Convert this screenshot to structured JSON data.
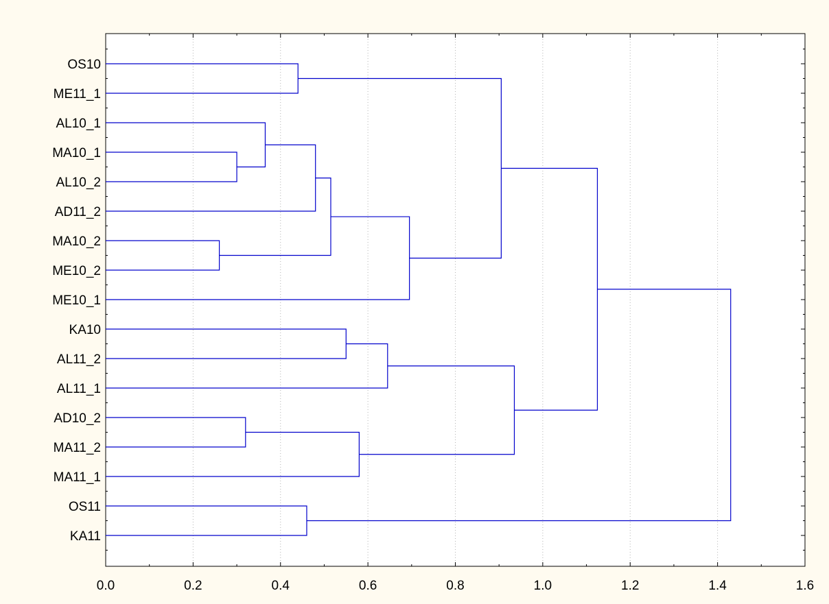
{
  "chart_data": {
    "type": "dendrogram",
    "orientation": "horizontal",
    "title": "",
    "xlabel": "",
    "ylabel": "",
    "xlim": [
      0.0,
      1.6
    ],
    "x_ticks": [
      0.0,
      0.2,
      0.4,
      0.6,
      0.8,
      1.0,
      1.2,
      1.4,
      1.6
    ],
    "x_tick_labels": [
      "0.0",
      "0.2",
      "0.4",
      "0.6",
      "0.8",
      "1.0",
      "1.2",
      "1.4",
      "1.6"
    ],
    "grid": "vertical dotted",
    "leaves": [
      "OS10",
      "ME11_1",
      "AL10_1",
      "MA10_1",
      "AL10_2",
      "AD11_2",
      "MA10_2",
      "ME10_2",
      "ME10_1",
      "KA10",
      "AL11_2",
      "AL11_1",
      "AD10_2",
      "MA11_2",
      "MA11_1",
      "OS11",
      "KA11"
    ],
    "merges": [
      {
        "id": "c1",
        "left": "MA10_2",
        "right": "ME10_2",
        "height": 0.26
      },
      {
        "id": "c2",
        "left": "MA10_1",
        "right": "AL10_2",
        "height": 0.3
      },
      {
        "id": "c3",
        "left": "AD10_2",
        "right": "MA11_2",
        "height": 0.32
      },
      {
        "id": "c4",
        "left": "AL10_1",
        "right": "c2",
        "height": 0.365
      },
      {
        "id": "c5",
        "left": "OS10",
        "right": "ME11_1",
        "height": 0.44
      },
      {
        "id": "c6",
        "left": "OS11",
        "right": "KA11",
        "height": 0.46
      },
      {
        "id": "c7",
        "left": "c4",
        "right": "AD11_2",
        "height": 0.48
      },
      {
        "id": "c8",
        "left": "c7",
        "right": "c1",
        "height": 0.515
      },
      {
        "id": "c9",
        "left": "KA10",
        "right": "AL11_2",
        "height": 0.55
      },
      {
        "id": "c10",
        "left": "c3",
        "right": "MA11_1",
        "height": 0.58
      },
      {
        "id": "c11",
        "left": "c9",
        "right": "AL11_1",
        "height": 0.645
      },
      {
        "id": "c12",
        "left": "c8",
        "right": "ME10_1",
        "height": 0.695
      },
      {
        "id": "c13",
        "left": "c5",
        "right": "c12",
        "height": 0.905
      },
      {
        "id": "c14",
        "left": "c11",
        "right": "c10",
        "height": 0.935
      },
      {
        "id": "c15",
        "left": "c13",
        "right": "c14",
        "height": 1.125
      },
      {
        "id": "c16",
        "left": "c15",
        "right": "c6",
        "height": 1.43
      }
    ],
    "colors": {
      "background": "#fffbf0",
      "plot_background": "#ffffff",
      "branch": "#0000cc",
      "axis": "#000000",
      "grid": "#b4b4b4"
    }
  }
}
